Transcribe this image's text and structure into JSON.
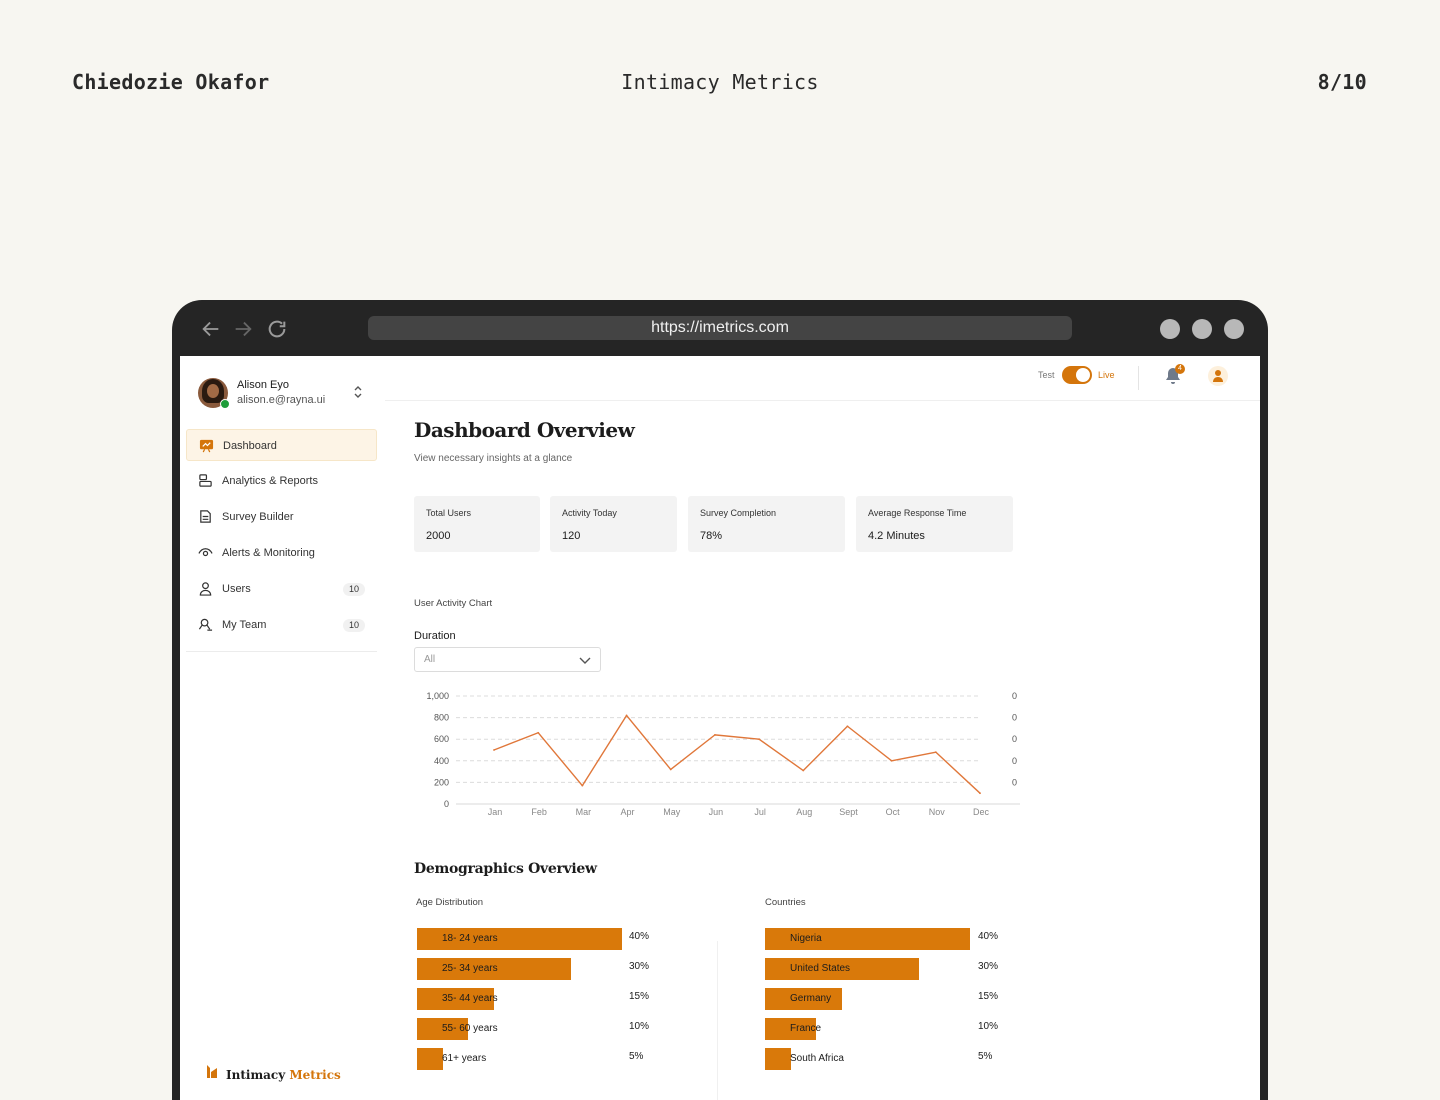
{
  "header": {
    "author": "Chiedozie Okafor",
    "project": "Intimacy Metrics",
    "page": "8/10"
  },
  "browser": {
    "url": "https://imetrics.com"
  },
  "sidebar": {
    "user": {
      "name": "Alison Eyo",
      "email": "alison.e@rayna.ui"
    },
    "items": [
      {
        "label": "Dashboard",
        "icon": "presentation-chart-icon",
        "active": true
      },
      {
        "label": "Analytics & Reports",
        "icon": "analytics-icon"
      },
      {
        "label": "Survey Builder",
        "icon": "document-icon"
      },
      {
        "label": "Alerts & Monitoring",
        "icon": "eye-icon"
      },
      {
        "label": "Users",
        "icon": "user-icon",
        "count": "10"
      },
      {
        "label": "My Team",
        "icon": "team-icon",
        "count": "10"
      }
    ],
    "logo": {
      "part1": "Intimacy",
      "part2": " Metrics"
    }
  },
  "topbar": {
    "test_label": "Test",
    "live_label": "Live",
    "notification_count": "4"
  },
  "main": {
    "title": "Dashboard Overview",
    "subtitle": "View necessary insights at a glance",
    "stats": [
      {
        "label": "Total Users",
        "value": "2000"
      },
      {
        "label": "Activity Today",
        "value": "120"
      },
      {
        "label": "Survey Completion",
        "value": "78%"
      },
      {
        "label": "Average Response Time",
        "value": "4.2 Minutes"
      }
    ],
    "chart_section_label": "User Activity Chart",
    "duration_label": "Duration",
    "duration_value": "All",
    "demographics_title": "Demographics Overview",
    "age_label": "Age Distribution",
    "countries_label": "Countries"
  },
  "chart_data": [
    {
      "type": "line",
      "categories": [
        "Jan",
        "Feb",
        "Mar",
        "Apr",
        "May",
        "Jun",
        "Jul",
        "Aug",
        "Sept",
        "Oct",
        "Nov",
        "Dec"
      ],
      "series": [
        {
          "values": [
            500,
            660,
            170,
            820,
            320,
            640,
            600,
            310,
            720,
            400,
            480,
            100
          ]
        }
      ],
      "ylim": [
        0,
        1000
      ],
      "yticks": [
        "0",
        "200",
        "400",
        "600",
        "800",
        "1,000"
      ],
      "right_ticks": [
        "0",
        "0",
        "0",
        "0",
        "0"
      ],
      "color": "#e0773a",
      "grid": true
    },
    {
      "type": "bar",
      "orientation": "horizontal",
      "title": "Age Distribution",
      "categories": [
        "18- 24 years",
        "25- 34 years",
        "35- 44 years",
        "55- 60 years",
        "61+ years"
      ],
      "values": [
        40,
        30,
        15,
        10,
        5
      ],
      "labels": [
        "40%",
        "30%",
        "15%",
        "10%",
        "5%"
      ],
      "color": "#d9790a"
    },
    {
      "type": "bar",
      "orientation": "horizontal",
      "title": "Countries",
      "categories": [
        "Nigeria",
        "United States",
        "Germany",
        "France",
        "South Africa"
      ],
      "values": [
        40,
        30,
        15,
        10,
        5
      ],
      "labels": [
        "40%",
        "30%",
        "15%",
        "10%",
        "5%"
      ],
      "color": "#d9790a"
    }
  ]
}
